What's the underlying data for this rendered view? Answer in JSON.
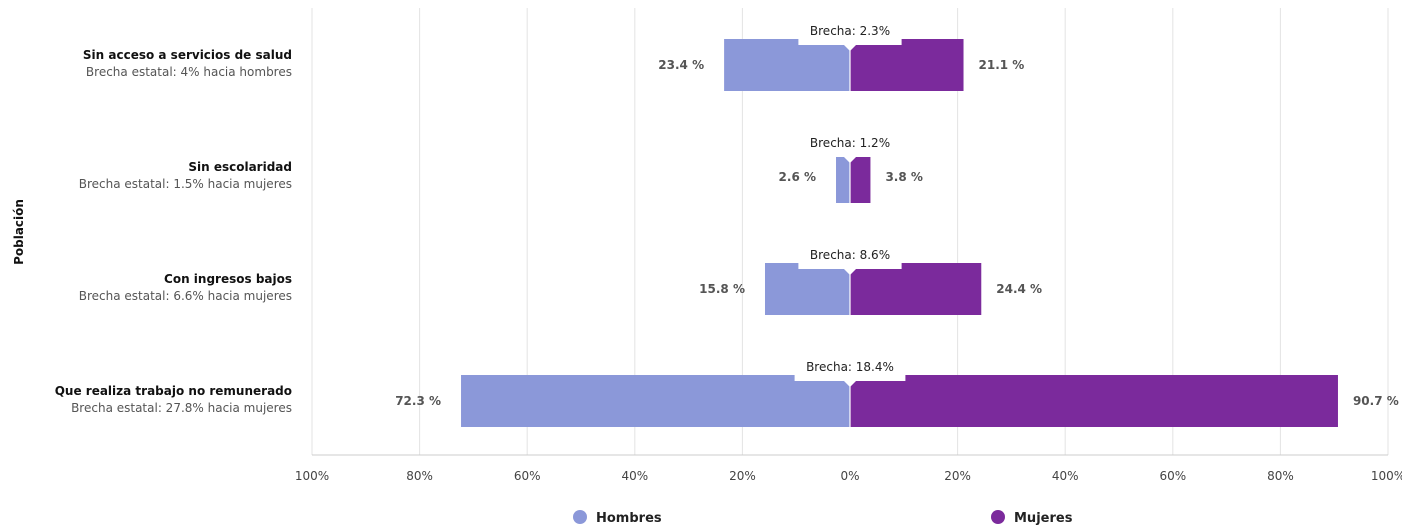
{
  "chart_data": {
    "type": "bar",
    "orientation": "horizontal-diverging",
    "ylabel": "Población",
    "xlim": [
      -100,
      100
    ],
    "ticks": [
      "100%",
      "80%",
      "60%",
      "40%",
      "20%",
      "0%",
      "20%",
      "40%",
      "60%",
      "80%",
      "100%"
    ],
    "categories": [
      {
        "title": "Sin acceso a servicios de salud",
        "subtitle": "Brecha estatal: 4% hacia hombres",
        "gap_label": "Brecha: 2.3%"
      },
      {
        "title": "Sin escolaridad",
        "subtitle": "Brecha estatal: 1.5% hacia mujeres",
        "gap_label": "Brecha: 1.2%"
      },
      {
        "title": "Con ingresos bajos",
        "subtitle": "Brecha estatal: 6.6% hacia mujeres",
        "gap_label": "Brecha: 8.6%"
      },
      {
        "title": "Que realiza trabajo no remunerado",
        "subtitle": "Brecha estatal: 27.8% hacia mujeres",
        "gap_label": "Brecha: 18.4%"
      }
    ],
    "series": [
      {
        "name": "Hombres",
        "color": "#8b98d9",
        "side": "left",
        "values": [
          23.4,
          2.6,
          15.8,
          72.3
        ],
        "labels": [
          "23.4 %",
          "2.6 %",
          "15.8 %",
          "72.3 %"
        ]
      },
      {
        "name": "Mujeres",
        "color": "#7b2a9c",
        "side": "right",
        "values": [
          21.1,
          3.8,
          24.4,
          90.7
        ],
        "labels": [
          "21.1 %",
          "3.8 %",
          "24.4 %",
          "90.7 %"
        ]
      }
    ],
    "legend_position": "bottom",
    "grid": true
  }
}
